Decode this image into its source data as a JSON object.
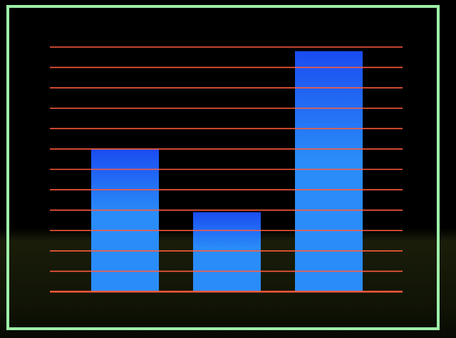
{
  "chart_data": {
    "type": "bar",
    "categories": [
      "",
      "",
      ""
    ],
    "values": [
      7,
      3.9,
      11.8
    ],
    "ylim": [
      0,
      12
    ],
    "grid": true,
    "legend": "none",
    "colors": {
      "background": "#000000",
      "frame": "#9ef0a8",
      "grid": "#ff5a3c",
      "bar_top": "#1a4cf0",
      "bar_bottom": "#2a8cf8"
    }
  }
}
